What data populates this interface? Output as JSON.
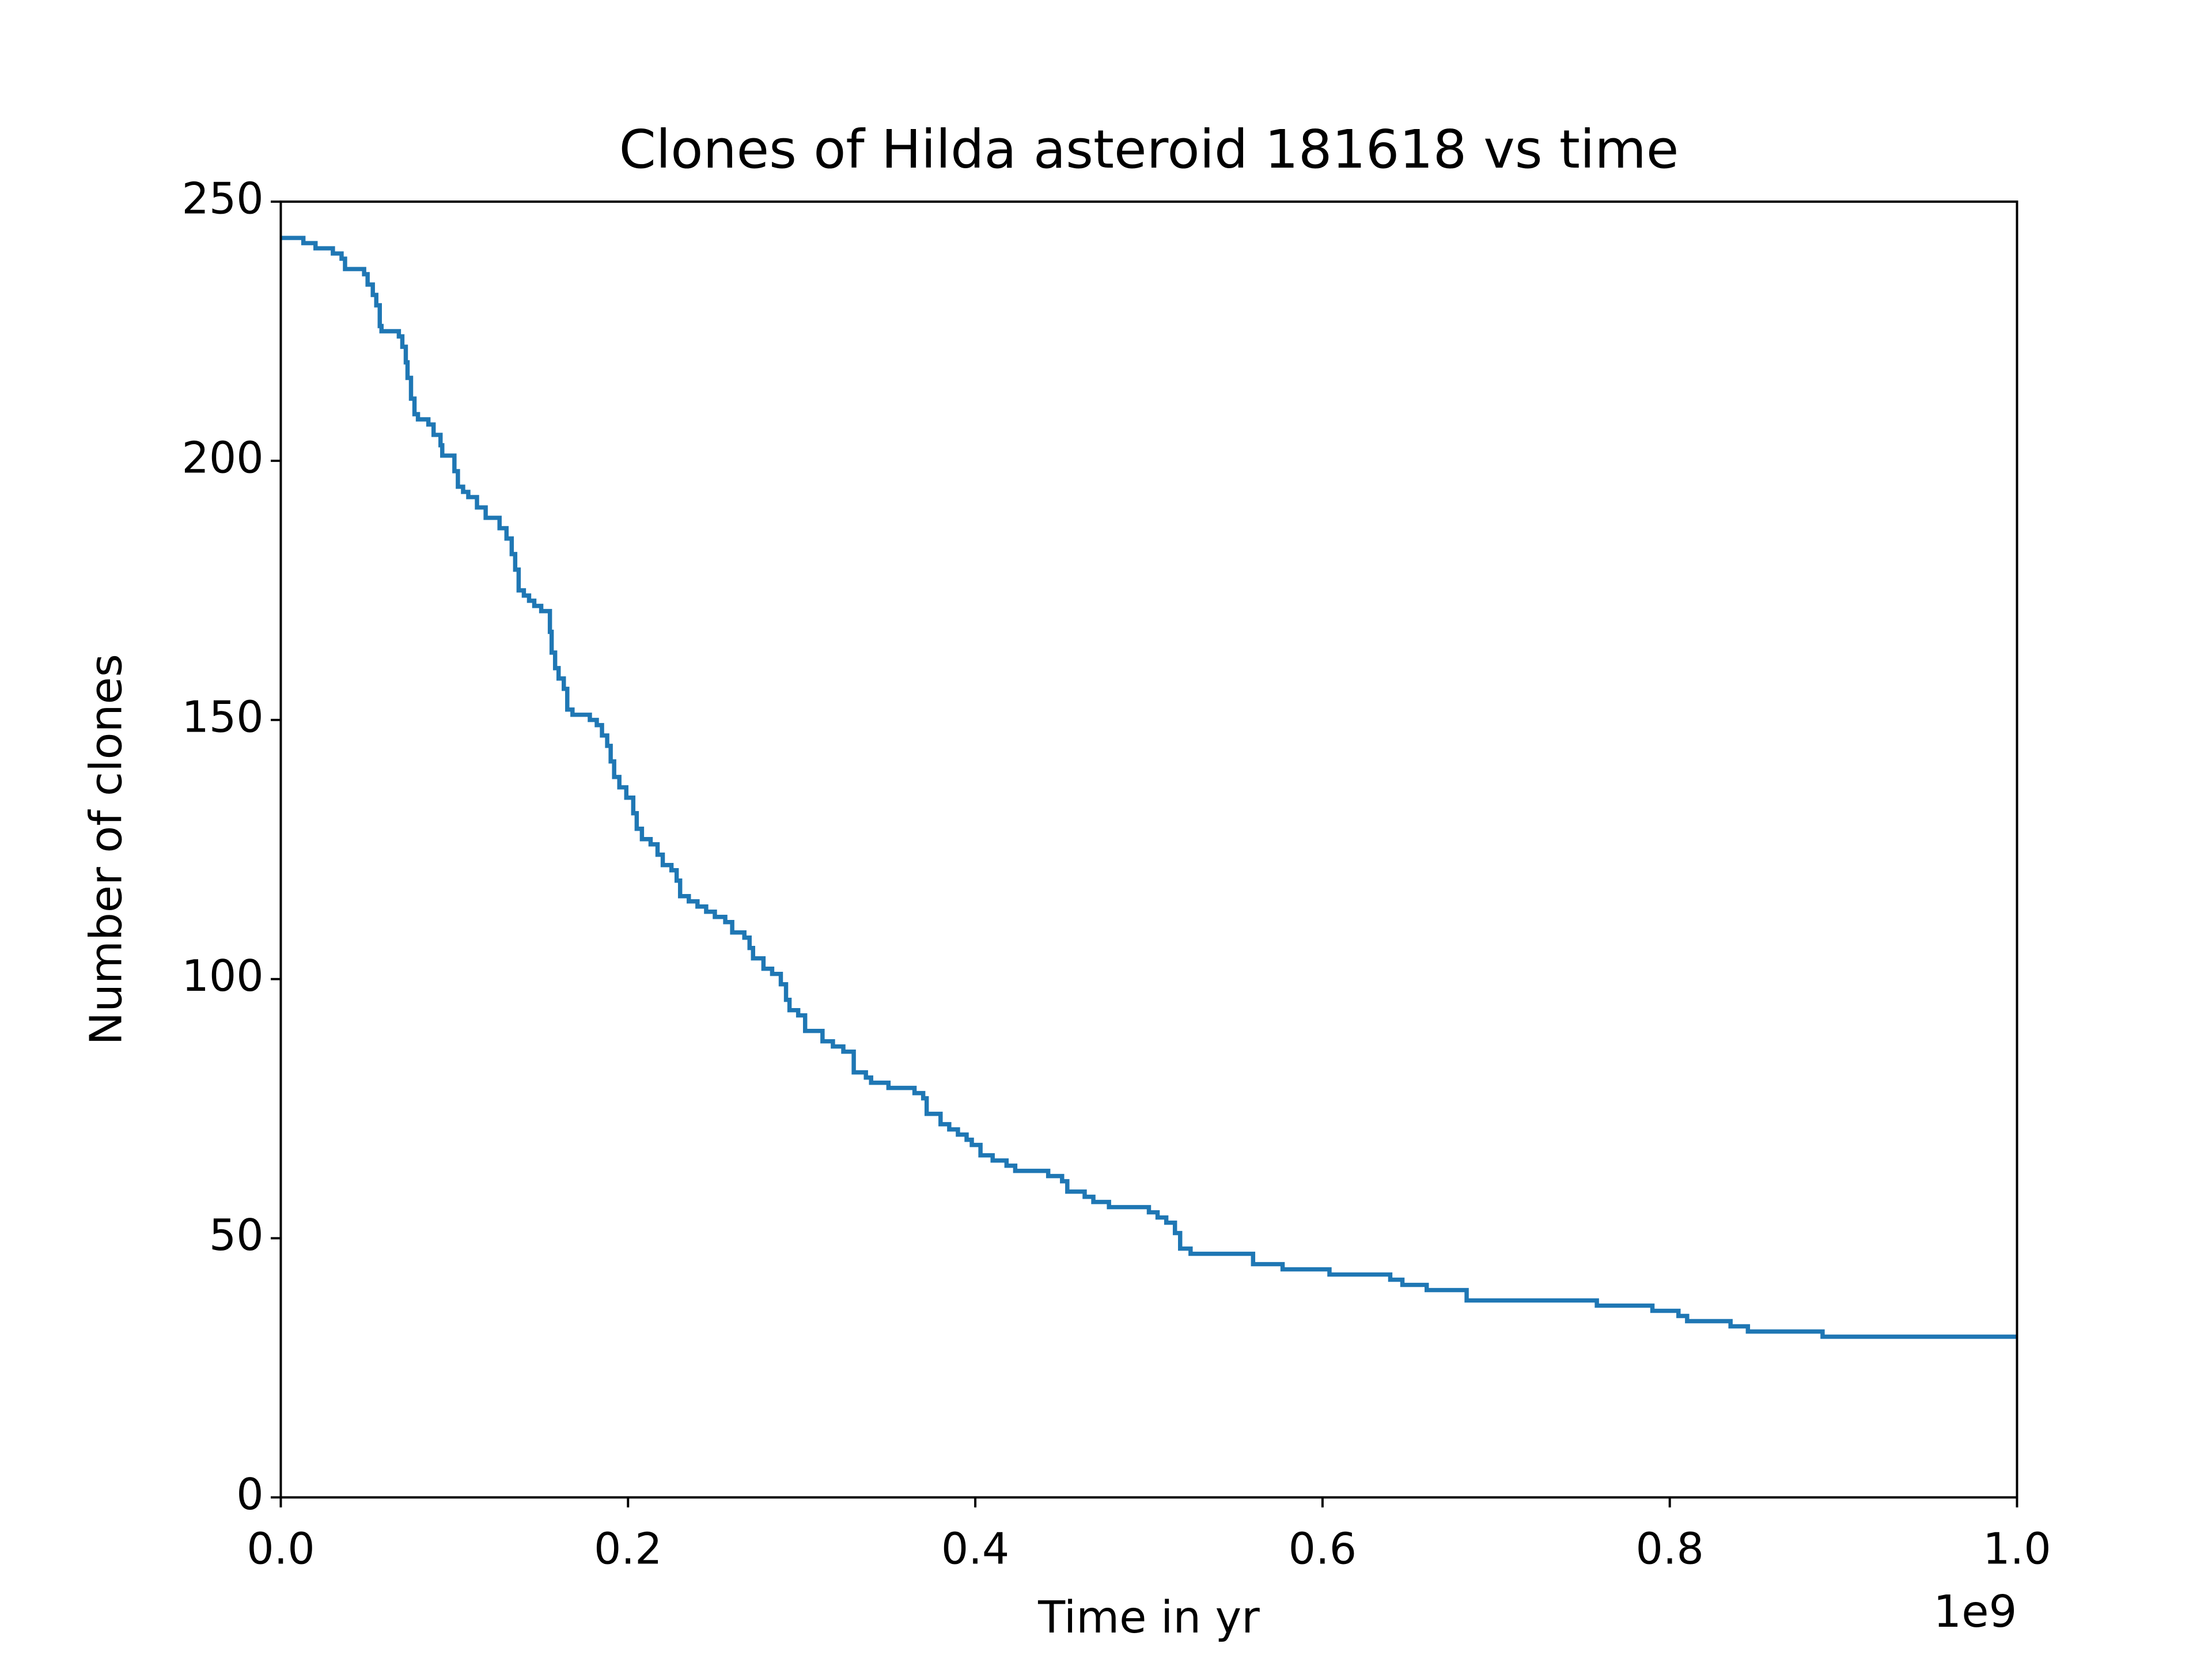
{
  "chart_data": {
    "type": "line",
    "drawstyle": "steps-post",
    "title": "Clones of Hilda asteroid 181618 vs time",
    "xlabel": "Time in yr",
    "ylabel": "Number of clones",
    "x_offset_label": "1e9",
    "xlim": [
      0,
      1
    ],
    "ylim": [
      0,
      250
    ],
    "xticks": [
      {
        "value": 0,
        "label": "0.0"
      },
      0.2,
      0.4,
      0.6,
      0.8,
      {
        "value": 1,
        "label": "1.0"
      }
    ],
    "yticks": [
      0,
      50,
      100,
      150,
      200,
      250
    ],
    "grid": false,
    "series": [
      {
        "color": "#1f77b4",
        "x": [
          0,
          0.013,
          0.02,
          0.03,
          0.035,
          0.037,
          0.048,
          0.05,
          0.053,
          0.055,
          0.057,
          0.058,
          0.068,
          0.07,
          0.072,
          0.073,
          0.075,
          0.077,
          0.079,
          0.085,
          0.088,
          0.092,
          0.093,
          0.1,
          0.102,
          0.105,
          0.108,
          0.113,
          0.118,
          0.126,
          0.13,
          0.133,
          0.135,
          0.137,
          0.14,
          0.143,
          0.146,
          0.15,
          0.155,
          0.156,
          0.158,
          0.16,
          0.163,
          0.165,
          0.168,
          0.178,
          0.182,
          0.185,
          0.188,
          0.19,
          0.192,
          0.195,
          0.199,
          0.203,
          0.205,
          0.208,
          0.213,
          0.217,
          0.22,
          0.225,
          0.228,
          0.23,
          0.235,
          0.24,
          0.245,
          0.25,
          0.256,
          0.26,
          0.267,
          0.27,
          0.272,
          0.278,
          0.283,
          0.288,
          0.291,
          0.293,
          0.298,
          0.302,
          0.312,
          0.318,
          0.324,
          0.33,
          0.337,
          0.34,
          0.35,
          0.365,
          0.37,
          0.372,
          0.38,
          0.385,
          0.39,
          0.395,
          0.398,
          0.403,
          0.41,
          0.418,
          0.423,
          0.442,
          0.45,
          0.453,
          0.463,
          0.468,
          0.477,
          0.5,
          0.505,
          0.51,
          0.515,
          0.518,
          0.524,
          0.56,
          0.577,
          0.604,
          0.639,
          0.646,
          0.66,
          0.683,
          0.758,
          0.79,
          0.805,
          0.81,
          0.835,
          0.845,
          0.888,
          1
        ],
        "values": [
          243,
          242,
          241,
          240,
          239,
          237,
          236,
          234,
          232,
          230,
          226,
          225,
          224,
          222,
          219,
          216,
          212,
          209,
          208,
          207,
          205,
          203,
          201,
          198,
          195,
          194,
          193,
          191,
          189,
          187,
          185,
          182,
          179,
          175,
          174,
          173,
          172,
          171,
          167,
          163,
          160,
          158,
          156,
          152,
          151,
          150,
          149,
          147,
          145,
          142,
          139,
          137,
          135,
          132,
          129,
          127,
          126,
          124,
          122,
          121,
          119,
          116,
          115,
          114,
          113,
          112,
          111,
          109,
          108,
          106,
          104,
          102,
          101,
          99,
          96,
          94,
          93,
          90,
          88,
          87,
          86,
          82,
          81,
          80,
          79,
          78,
          77,
          74,
          72,
          71,
          70,
          69,
          68,
          66,
          65,
          64,
          63,
          62,
          61,
          59,
          58,
          57,
          56,
          55,
          54,
          53,
          51,
          48,
          47,
          45,
          44,
          43,
          42,
          41,
          40,
          38,
          37,
          36,
          35,
          34,
          33,
          32,
          31,
          31
        ]
      }
    ]
  }
}
